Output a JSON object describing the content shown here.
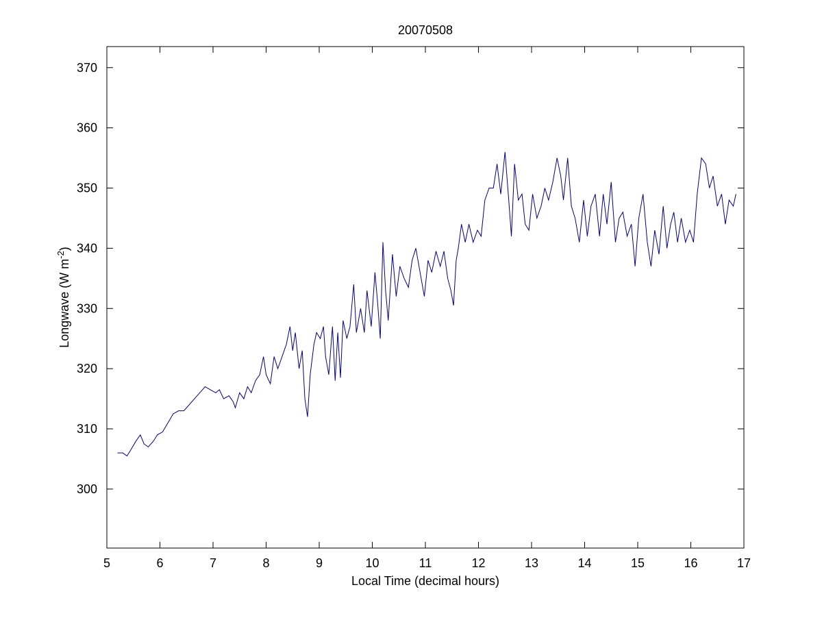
{
  "chart_data": {
    "type": "line",
    "title": "20070508",
    "xlabel": "Local Time (decimal hours)",
    "ylabel": [
      "Longwave (W m",
      "-2",
      ")"
    ],
    "xlim": [
      5,
      17
    ],
    "ylim": [
      290.2,
      373.5
    ],
    "xticks": [
      5,
      6,
      7,
      8,
      9,
      10,
      11,
      12,
      13,
      14,
      15,
      16,
      17
    ],
    "yticks": [
      300,
      310,
      320,
      330,
      340,
      350,
      360,
      370
    ],
    "color": "#00008b",
    "x": [
      5.2,
      5.3,
      5.38,
      5.45,
      5.55,
      5.63,
      5.7,
      5.78,
      5.88,
      5.95,
      6.05,
      6.15,
      6.25,
      6.35,
      6.45,
      6.55,
      6.65,
      6.75,
      6.85,
      6.95,
      7.05,
      7.12,
      7.2,
      7.3,
      7.38,
      7.42,
      7.5,
      7.58,
      7.65,
      7.72,
      7.8,
      7.88,
      7.95,
      8.0,
      8.08,
      8.15,
      8.22,
      8.3,
      8.38,
      8.45,
      8.5,
      8.55,
      8.62,
      8.68,
      8.73,
      8.78,
      8.83,
      8.9,
      8.95,
      9.02,
      9.08,
      9.12,
      9.18,
      9.25,
      9.3,
      9.35,
      9.4,
      9.45,
      9.52,
      9.58,
      9.65,
      9.7,
      9.78,
      9.85,
      9.9,
      9.98,
      10.05,
      10.1,
      10.15,
      10.2,
      10.25,
      10.3,
      10.38,
      10.45,
      10.52,
      10.6,
      10.68,
      10.75,
      10.82,
      10.9,
      10.98,
      11.05,
      11.12,
      11.2,
      11.28,
      11.35,
      11.42,
      11.48,
      11.53,
      11.58,
      11.62,
      11.68,
      11.75,
      11.82,
      11.9,
      11.98,
      12.05,
      12.12,
      12.2,
      12.28,
      12.35,
      12.42,
      12.5,
      12.57,
      12.62,
      12.68,
      12.75,
      12.82,
      12.88,
      12.95,
      13.02,
      13.1,
      13.18,
      13.25,
      13.32,
      13.4,
      13.48,
      13.55,
      13.6,
      13.68,
      13.75,
      13.82,
      13.9,
      13.98,
      14.05,
      14.12,
      14.2,
      14.28,
      14.35,
      14.42,
      14.5,
      14.58,
      14.65,
      14.72,
      14.8,
      14.88,
      14.95,
      15.02,
      15.1,
      15.18,
      15.25,
      15.32,
      15.4,
      15.48,
      15.55,
      15.62,
      15.68,
      15.75,
      15.82,
      15.9,
      15.98,
      16.05,
      16.12,
      16.2,
      16.28,
      16.35,
      16.42,
      16.5,
      16.58,
      16.65,
      16.72,
      16.8,
      16.85
    ],
    "values": [
      306,
      306,
      305.5,
      306.5,
      308,
      309,
      307.5,
      307,
      308,
      309,
      309.5,
      311,
      312.5,
      313,
      313,
      314,
      315,
      316,
      317,
      316.5,
      316,
      316.5,
      315,
      315.5,
      314.5,
      313.5,
      316,
      315,
      317,
      316,
      318,
      319,
      322,
      319,
      317.5,
      322,
      320,
      322,
      324,
      327,
      323,
      326,
      320,
      323,
      315,
      312,
      319,
      324,
      326,
      325,
      327,
      322,
      319,
      327,
      318,
      326,
      318.5,
      328,
      325,
      327,
      334,
      326,
      330,
      326,
      333,
      327,
      336,
      331,
      325,
      341,
      333,
      328,
      339,
      332,
      337,
      335,
      333.5,
      338,
      340,
      336,
      332,
      338,
      336,
      339.5,
      337,
      339.5,
      335,
      333,
      330.5,
      338,
      340,
      344,
      341,
      344,
      341,
      343,
      342,
      348,
      350,
      350,
      354,
      349,
      356,
      348,
      342,
      354,
      348,
      349,
      344,
      343,
      349,
      345,
      347,
      350,
      348,
      351,
      355,
      352,
      348,
      355,
      347,
      345,
      341,
      348,
      342,
      347,
      349,
      342,
      349,
      344,
      351,
      341,
      345,
      346,
      342,
      344,
      337,
      345,
      349,
      341,
      337,
      343,
      339,
      347,
      340,
      344,
      346,
      341,
      345,
      341,
      343,
      341,
      349,
      355,
      354,
      350,
      352,
      347,
      349,
      344,
      348,
      347,
      349
    ]
  }
}
